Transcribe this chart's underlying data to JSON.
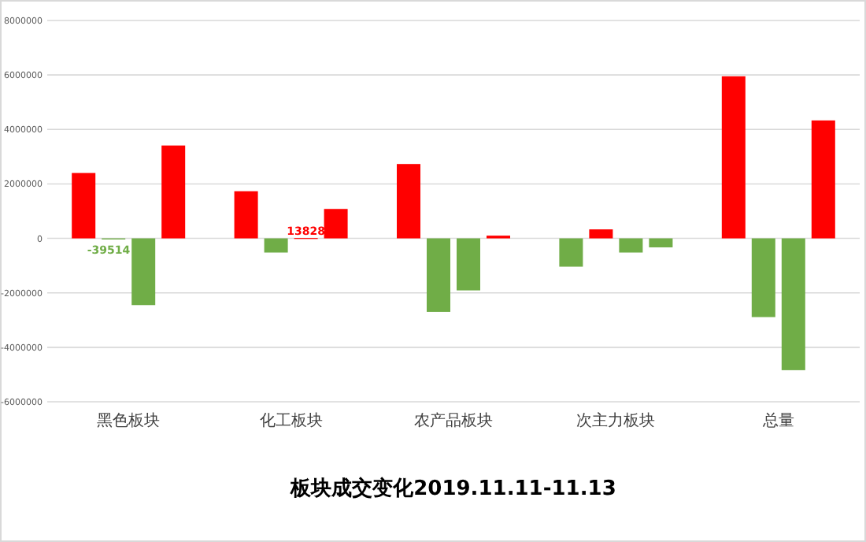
{
  "chart_data": {
    "type": "bar",
    "title": "板块成交变化2019.11.11-11.13",
    "categories": [
      "黑色板块",
      "化工板块",
      "农产品板块",
      "次主力板块",
      "总量"
    ],
    "series": [
      {
        "values": [
          2400000,
          1730000,
          2730000,
          -1040000,
          5950000
        ],
        "colors": [
          "#ff0000",
          "#ff0000",
          "#ff0000",
          "#70ad47",
          "#ff0000"
        ]
      },
      {
        "values": [
          -39514,
          -520000,
          -2700000,
          330000,
          -2890000
        ],
        "colors": [
          "#70ad47",
          "#70ad47",
          "#70ad47",
          "#ff0000",
          "#70ad47"
        ],
        "value_labels": [
          "-39514",
          null,
          null,
          null,
          null
        ]
      },
      {
        "values": [
          -2450000,
          13828,
          -1910000,
          -520000,
          -4840000
        ],
        "colors": [
          "#70ad47",
          "#ff0000",
          "#70ad47",
          "#70ad47",
          "#70ad47"
        ],
        "value_labels": [
          null,
          "13828",
          null,
          null,
          null
        ]
      },
      {
        "values": [
          3410000,
          1080000,
          100000,
          -330000,
          4330000
        ],
        "colors": [
          "#ff0000",
          "#ff0000",
          "#ff0000",
          "#70ad47",
          "#ff0000"
        ]
      }
    ],
    "ylim": [
      -6000000,
      8000000
    ],
    "yticks": [
      -6000000,
      -4000000,
      -2000000,
      0,
      2000000,
      4000000,
      6000000,
      8000000
    ],
    "grid": "y"
  }
}
